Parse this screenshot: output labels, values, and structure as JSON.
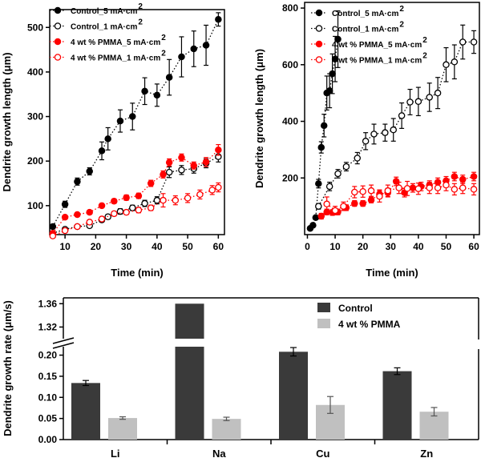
{
  "chart_data": [
    {
      "type": "line",
      "panel": "top-left",
      "xlabel": "Time (min)",
      "ylabel": "Dendrite growth length (μm)",
      "xlim": [
        5,
        62
      ],
      "ylim": [
        35,
        540
      ],
      "xticks": [
        10,
        20,
        30,
        40,
        50,
        60
      ],
      "yticks": [
        100,
        200,
        300,
        400,
        500
      ],
      "legend_position": "top-left",
      "series": [
        {
          "name": "Control_5 mA·cm",
          "sup": "2",
          "color": "#000000",
          "filled": true,
          "x": [
            6,
            10,
            14,
            18,
            22,
            24,
            28,
            32,
            36,
            40,
            44,
            48,
            52,
            56,
            60
          ],
          "y": [
            53,
            103,
            154,
            177,
            223,
            250,
            290,
            300,
            357,
            348,
            388,
            434,
            452,
            460,
            518
          ],
          "err": [
            5,
            7,
            8,
            8,
            20,
            25,
            25,
            30,
            30,
            25,
            40,
            45,
            40,
            45,
            15
          ]
        },
        {
          "name": "Control_1 mA·cm",
          "sup": "2",
          "color": "#000000",
          "filled": false,
          "x": [
            6,
            10,
            14,
            18,
            22,
            24,
            28,
            32,
            36,
            40,
            44,
            48,
            52,
            56,
            60
          ],
          "y": [
            38,
            47,
            53,
            55,
            68,
            75,
            87,
            95,
            105,
            112,
            175,
            180,
            183,
            195,
            210
          ],
          "err": [
            3,
            3,
            4,
            4,
            5,
            5,
            6,
            6,
            7,
            8,
            12,
            10,
            10,
            10,
            12
          ]
        },
        {
          "name": "4 wt % PMMA_5 mA·cm",
          "sup": "2",
          "color": "#ff0000",
          "filled": true,
          "x": [
            6,
            10,
            14,
            18,
            22,
            26,
            30,
            34,
            38,
            42,
            44,
            48,
            52,
            56,
            60
          ],
          "y": [
            38,
            74,
            80,
            85,
            100,
            110,
            118,
            122,
            150,
            170,
            197,
            208,
            190,
            198,
            225
          ],
          "err": [
            3,
            4,
            4,
            4,
            5,
            5,
            6,
            6,
            7,
            8,
            8,
            8,
            8,
            10,
            12
          ]
        },
        {
          "name": "4 wt % PMMA_1 mA·cm",
          "sup": "2",
          "color": "#ff0000",
          "filled": false,
          "x": [
            6,
            10,
            14,
            18,
            22,
            26,
            30,
            34,
            38,
            42,
            46,
            50,
            54,
            58,
            60
          ],
          "y": [
            32,
            44,
            53,
            63,
            70,
            82,
            85,
            90,
            95,
            112,
            112,
            117,
            125,
            135,
            141
          ],
          "err": [
            3,
            3,
            4,
            4,
            5,
            5,
            5,
            6,
            6,
            15,
            10,
            10,
            10,
            10,
            10
          ]
        }
      ]
    },
    {
      "type": "line",
      "panel": "top-right",
      "xlabel": "Time (min)",
      "ylabel": "Dendrite growth length (μm)",
      "xlim": [
        -1,
        62
      ],
      "ylim": [
        0,
        820
      ],
      "xticks": [
        0,
        10,
        20,
        30,
        40,
        50,
        60
      ],
      "yticks": [
        200,
        400,
        600,
        800
      ],
      "legend_position": "top-center",
      "series": [
        {
          "name": "Control_5 mA·cm",
          "sup": "2",
          "color": "#000000",
          "filled": true,
          "x": [
            1,
            2,
            3,
            4,
            5,
            6,
            7,
            8,
            9,
            10,
            11
          ],
          "y": [
            22,
            33,
            60,
            180,
            308,
            385,
            500,
            508,
            568,
            620,
            690
          ],
          "err": [
            4,
            4,
            6,
            15,
            20,
            40,
            60,
            60,
            70,
            80,
            100
          ]
        },
        {
          "name": "Control_1 mA·cm",
          "sup": "2",
          "color": "#000000",
          "filled": false,
          "x": [
            4,
            8,
            11,
            14,
            18,
            21,
            24,
            28,
            31,
            34,
            37,
            40,
            44,
            47,
            50,
            53,
            56,
            60
          ],
          "y": [
            100,
            170,
            215,
            240,
            270,
            330,
            355,
            360,
            370,
            420,
            468,
            470,
            485,
            500,
            600,
            610,
            680,
            680
          ],
          "err": [
            10,
            15,
            15,
            15,
            20,
            30,
            35,
            30,
            40,
            45,
            45,
            50,
            50,
            55,
            60,
            60,
            60,
            40
          ]
        },
        {
          "name": "4 wt % PMMA_5 mA·cm",
          "sup": "2",
          "color": "#ff0000",
          "filled": true,
          "x": [
            5,
            7,
            9,
            11,
            14,
            17,
            20,
            23,
            26,
            29,
            32,
            35,
            38,
            41,
            44,
            47,
            50,
            53,
            56,
            60
          ],
          "y": [
            65,
            80,
            78,
            80,
            95,
            110,
            110,
            122,
            143,
            148,
            188,
            148,
            165,
            170,
            175,
            185,
            190,
            205,
            195,
            205
          ],
          "err": [
            10,
            10,
            10,
            10,
            10,
            10,
            10,
            10,
            15,
            15,
            15,
            15,
            15,
            15,
            15,
            15,
            15,
            15,
            15,
            15
          ]
        },
        {
          "name": "4 wt % PMMA_1 mA·cm",
          "sup": "2",
          "color": "#ff0000",
          "filled": false,
          "x": [
            7,
            10,
            13,
            17,
            20,
            23,
            26,
            29,
            33,
            36,
            40,
            44,
            47,
            50,
            53,
            56,
            60
          ],
          "y": [
            108,
            85,
            100,
            150,
            152,
            155,
            135,
            155,
            165,
            163,
            162,
            165,
            165,
            175,
            160,
            165,
            160
          ],
          "err": [
            25,
            15,
            15,
            20,
            20,
            20,
            20,
            20,
            20,
            25,
            20,
            20,
            20,
            20,
            20,
            20,
            20
          ]
        }
      ]
    },
    {
      "type": "bar",
      "panel": "bottom",
      "ylabel": "Dendrite growth rate (μm/s)",
      "categories": [
        "Li",
        "Na",
        "Cu",
        "Zn"
      ],
      "broken_axis": {
        "lower": [
          0,
          0.22
        ],
        "upper": [
          1.3,
          1.37
        ]
      },
      "yticks_lower": [
        "0.00",
        "0.05",
        "0.10",
        "0.15",
        "0.20"
      ],
      "yticks_upper": [
        "1.32",
        "1.36"
      ],
      "legend_position": "top-right",
      "series": [
        {
          "name": "Control",
          "color": "#3a3a3a",
          "values": [
            0.134,
            1.36,
            0.208,
            0.162
          ],
          "err": [
            0.006,
            0,
            0.01,
            0.008
          ]
        },
        {
          "name": "4 wt % PMMA",
          "color": "#c0c0c0",
          "values": [
            0.051,
            0.049,
            0.082,
            0.066
          ],
          "err": [
            0.003,
            0.004,
            0.02,
            0.01
          ]
        }
      ]
    }
  ]
}
